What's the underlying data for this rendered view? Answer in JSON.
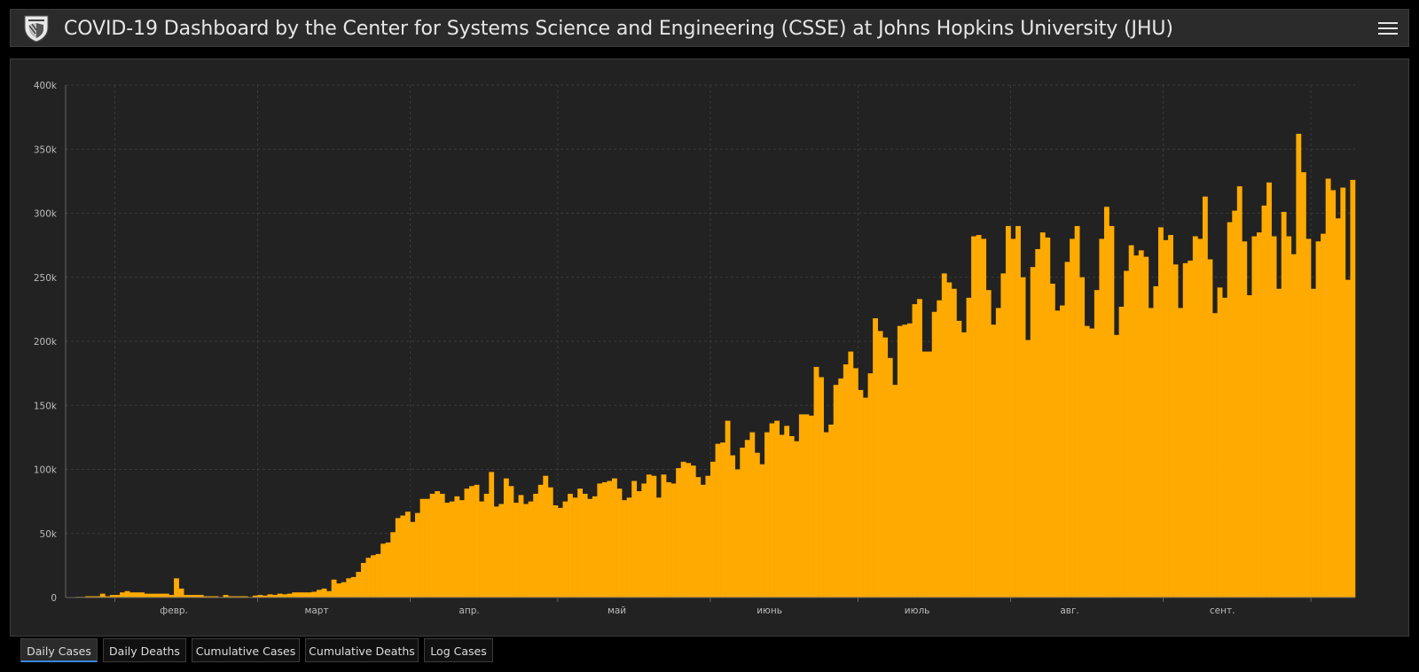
{
  "header": {
    "title": "COVID-19 Dashboard by the Center for Systems Science and Engineering (CSSE) at Johns Hopkins University (JHU)",
    "logo_icon": "jhu-shield-icon",
    "menu_icon": "hamburger-menu-icon"
  },
  "tabs": [
    "Daily Cases",
    "Daily Deaths",
    "Cumulative Cases",
    "Cumulative Deaths",
    "Log Cases"
  ],
  "active_tab": "Daily Cases",
  "colors": {
    "bar": "#FFAA00",
    "background": "#222222",
    "active_tab": "#3A86D8"
  },
  "chart_data": {
    "type": "bar",
    "title": "",
    "xlabel": "",
    "ylabel": "",
    "ylim": [
      0,
      400000
    ],
    "y_ticks": [
      0,
      50000,
      100000,
      150000,
      200000,
      250000,
      300000,
      350000,
      400000
    ],
    "y_tick_labels": [
      "0",
      "50k",
      "100k",
      "150k",
      "200k",
      "250k",
      "300k",
      "350k",
      "400k"
    ],
    "x_month_labels": [
      "февр.",
      "март",
      "апр.",
      "май",
      "июнь",
      "июль",
      "авг.",
      "сент."
    ],
    "month_label_day_index": [
      22,
      51,
      82,
      112,
      143,
      173,
      204,
      235
    ],
    "month_boundary_day_index": [
      10,
      39,
      70,
      100,
      131,
      161,
      192,
      223,
      253
    ],
    "grid": true,
    "legend": "none",
    "series": [
      {
        "values": [
          0,
          0,
          500,
          500,
          1000,
          1000,
          1000,
          3000,
          1000,
          2000,
          2000,
          4000,
          5000,
          4000,
          4000,
          4000,
          3000,
          3000,
          3000,
          3000,
          3000,
          2000,
          15000,
          7000,
          2000,
          2000,
          2000,
          2000,
          1000,
          1000,
          1000,
          500,
          2000,
          1000,
          1000,
          1000,
          1000,
          500,
          1500,
          2000,
          1500,
          2500,
          2000,
          3000,
          2500,
          3000,
          4000,
          4000,
          4000,
          4000,
          4500,
          6000,
          7000,
          5000,
          14000,
          11000,
          12000,
          15000,
          16000,
          20000,
          27000,
          31000,
          33000,
          34000,
          42000,
          43000,
          51000,
          62000,
          64000,
          67000,
          59000,
          66000,
          77000,
          77000,
          81000,
          83000,
          81000,
          74000,
          75000,
          79000,
          76000,
          85000,
          87000,
          88000,
          75000,
          81000,
          98000,
          71000,
          73000,
          93000,
          87000,
          74000,
          80000,
          73000,
          75000,
          81000,
          88000,
          95000,
          86000,
          72000,
          70000,
          75000,
          81000,
          78000,
          85000,
          81000,
          77000,
          79000,
          89000,
          90000,
          91000,
          93000,
          85000,
          76000,
          78000,
          91000,
          83000,
          89000,
          96000,
          95000,
          78000,
          96000,
          90000,
          89000,
          101000,
          106000,
          105000,
          103000,
          94000,
          88000,
          95000,
          106000,
          120000,
          121000,
          138000,
          111000,
          100000,
          117000,
          123000,
          129000,
          113000,
          104000,
          129000,
          136000,
          138000,
          127000,
          134000,
          126000,
          122000,
          143000,
          143000,
          142000,
          180000,
          172000,
          129000,
          135000,
          166000,
          171000,
          182000,
          192000,
          179000,
          162000,
          156000,
          175000,
          218000,
          208000,
          203000,
          187000,
          166000,
          212000,
          213000,
          214000,
          229000,
          233000,
          192000,
          192000,
          223000,
          232000,
          253000,
          246000,
          241000,
          216000,
          207000,
          234000,
          282000,
          283000,
          280000,
          240000,
          213000,
          226000,
          253000,
          290000,
          280000,
          290000,
          250000,
          201000,
          258000,
          272000,
          285000,
          281000,
          245000,
          224000,
          228000,
          262000,
          280000,
          290000,
          250000,
          212000,
          210000,
          240000,
          280000,
          305000,
          290000,
          205000,
          227000,
          255000,
          275000,
          267000,
          271000,
          266000,
          226000,
          243000,
          289000,
          279000,
          283000,
          260000,
          226000,
          261000,
          263000,
          282000,
          280000,
          313000,
          264000,
          222000,
          242000,
          234000,
          293000,
          302000,
          321000,
          278000,
          236000,
          282000,
          285000,
          306000,
          324000,
          282000,
          241000,
          301000,
          282000,
          268000,
          362000,
          332000,
          280000,
          241000,
          278000,
          284000,
          327000,
          318000,
          296000,
          320000,
          248000,
          326000
        ]
      }
    ]
  }
}
